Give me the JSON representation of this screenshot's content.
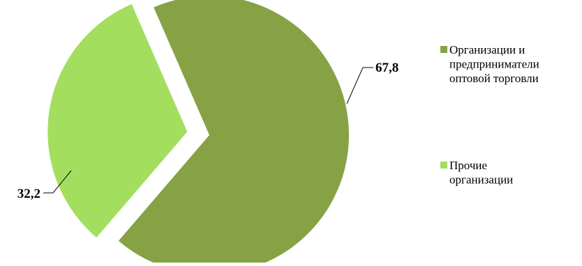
{
  "chart_data": {
    "type": "pie",
    "title": "",
    "categories": [
      "Организации и предприниматели оптовой торговли",
      "Прочие организации"
    ],
    "values": [
      67.8,
      32.2
    ],
    "data_labels": [
      "67,8",
      "32,2"
    ],
    "colors": [
      "#86a244",
      "#a3de5f"
    ],
    "exploded": [
      false,
      true
    ],
    "legend": {
      "position": "right",
      "items": [
        {
          "lines": [
            "Организации и",
            "предприниматели",
            "оптовой торговли"
          ]
        },
        {
          "lines": [
            "Прочие",
            "организации"
          ]
        }
      ]
    }
  }
}
